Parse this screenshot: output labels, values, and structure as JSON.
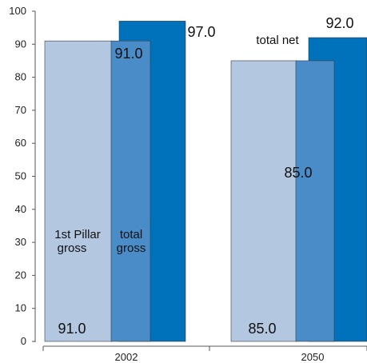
{
  "chart_data": {
    "type": "bar",
    "categories": [
      "2002",
      "2050"
    ],
    "series": [
      {
        "name": "1st Pillar gross",
        "values": [
          91.0,
          85.0
        ],
        "color": "#b3c7e0"
      },
      {
        "name": "total gross",
        "values": [
          91.0,
          85.0
        ],
        "color": "#4a8cc8"
      },
      {
        "name": "total net",
        "values": [
          97.0,
          92.0
        ],
        "color": "#0072bc"
      }
    ],
    "series_labels": {
      "first_pillar": [
        "1st Pillar",
        "gross"
      ],
      "total_gross": [
        "total",
        "gross"
      ],
      "total_net": "total net"
    },
    "data_labels": {
      "bottom_2002": "91.0",
      "bottom_2050": "85.0",
      "mid_2002": "91.0",
      "mid_2050": "85.0",
      "top_2002": "97.0",
      "top_2050": "92.0"
    },
    "yticks": [
      "0",
      "10",
      "20",
      "30",
      "40",
      "50",
      "60",
      "70",
      "80",
      "90",
      "100"
    ],
    "ylim": [
      0,
      100
    ],
    "grid": false,
    "title": "",
    "xlabel": "",
    "ylabel": ""
  }
}
